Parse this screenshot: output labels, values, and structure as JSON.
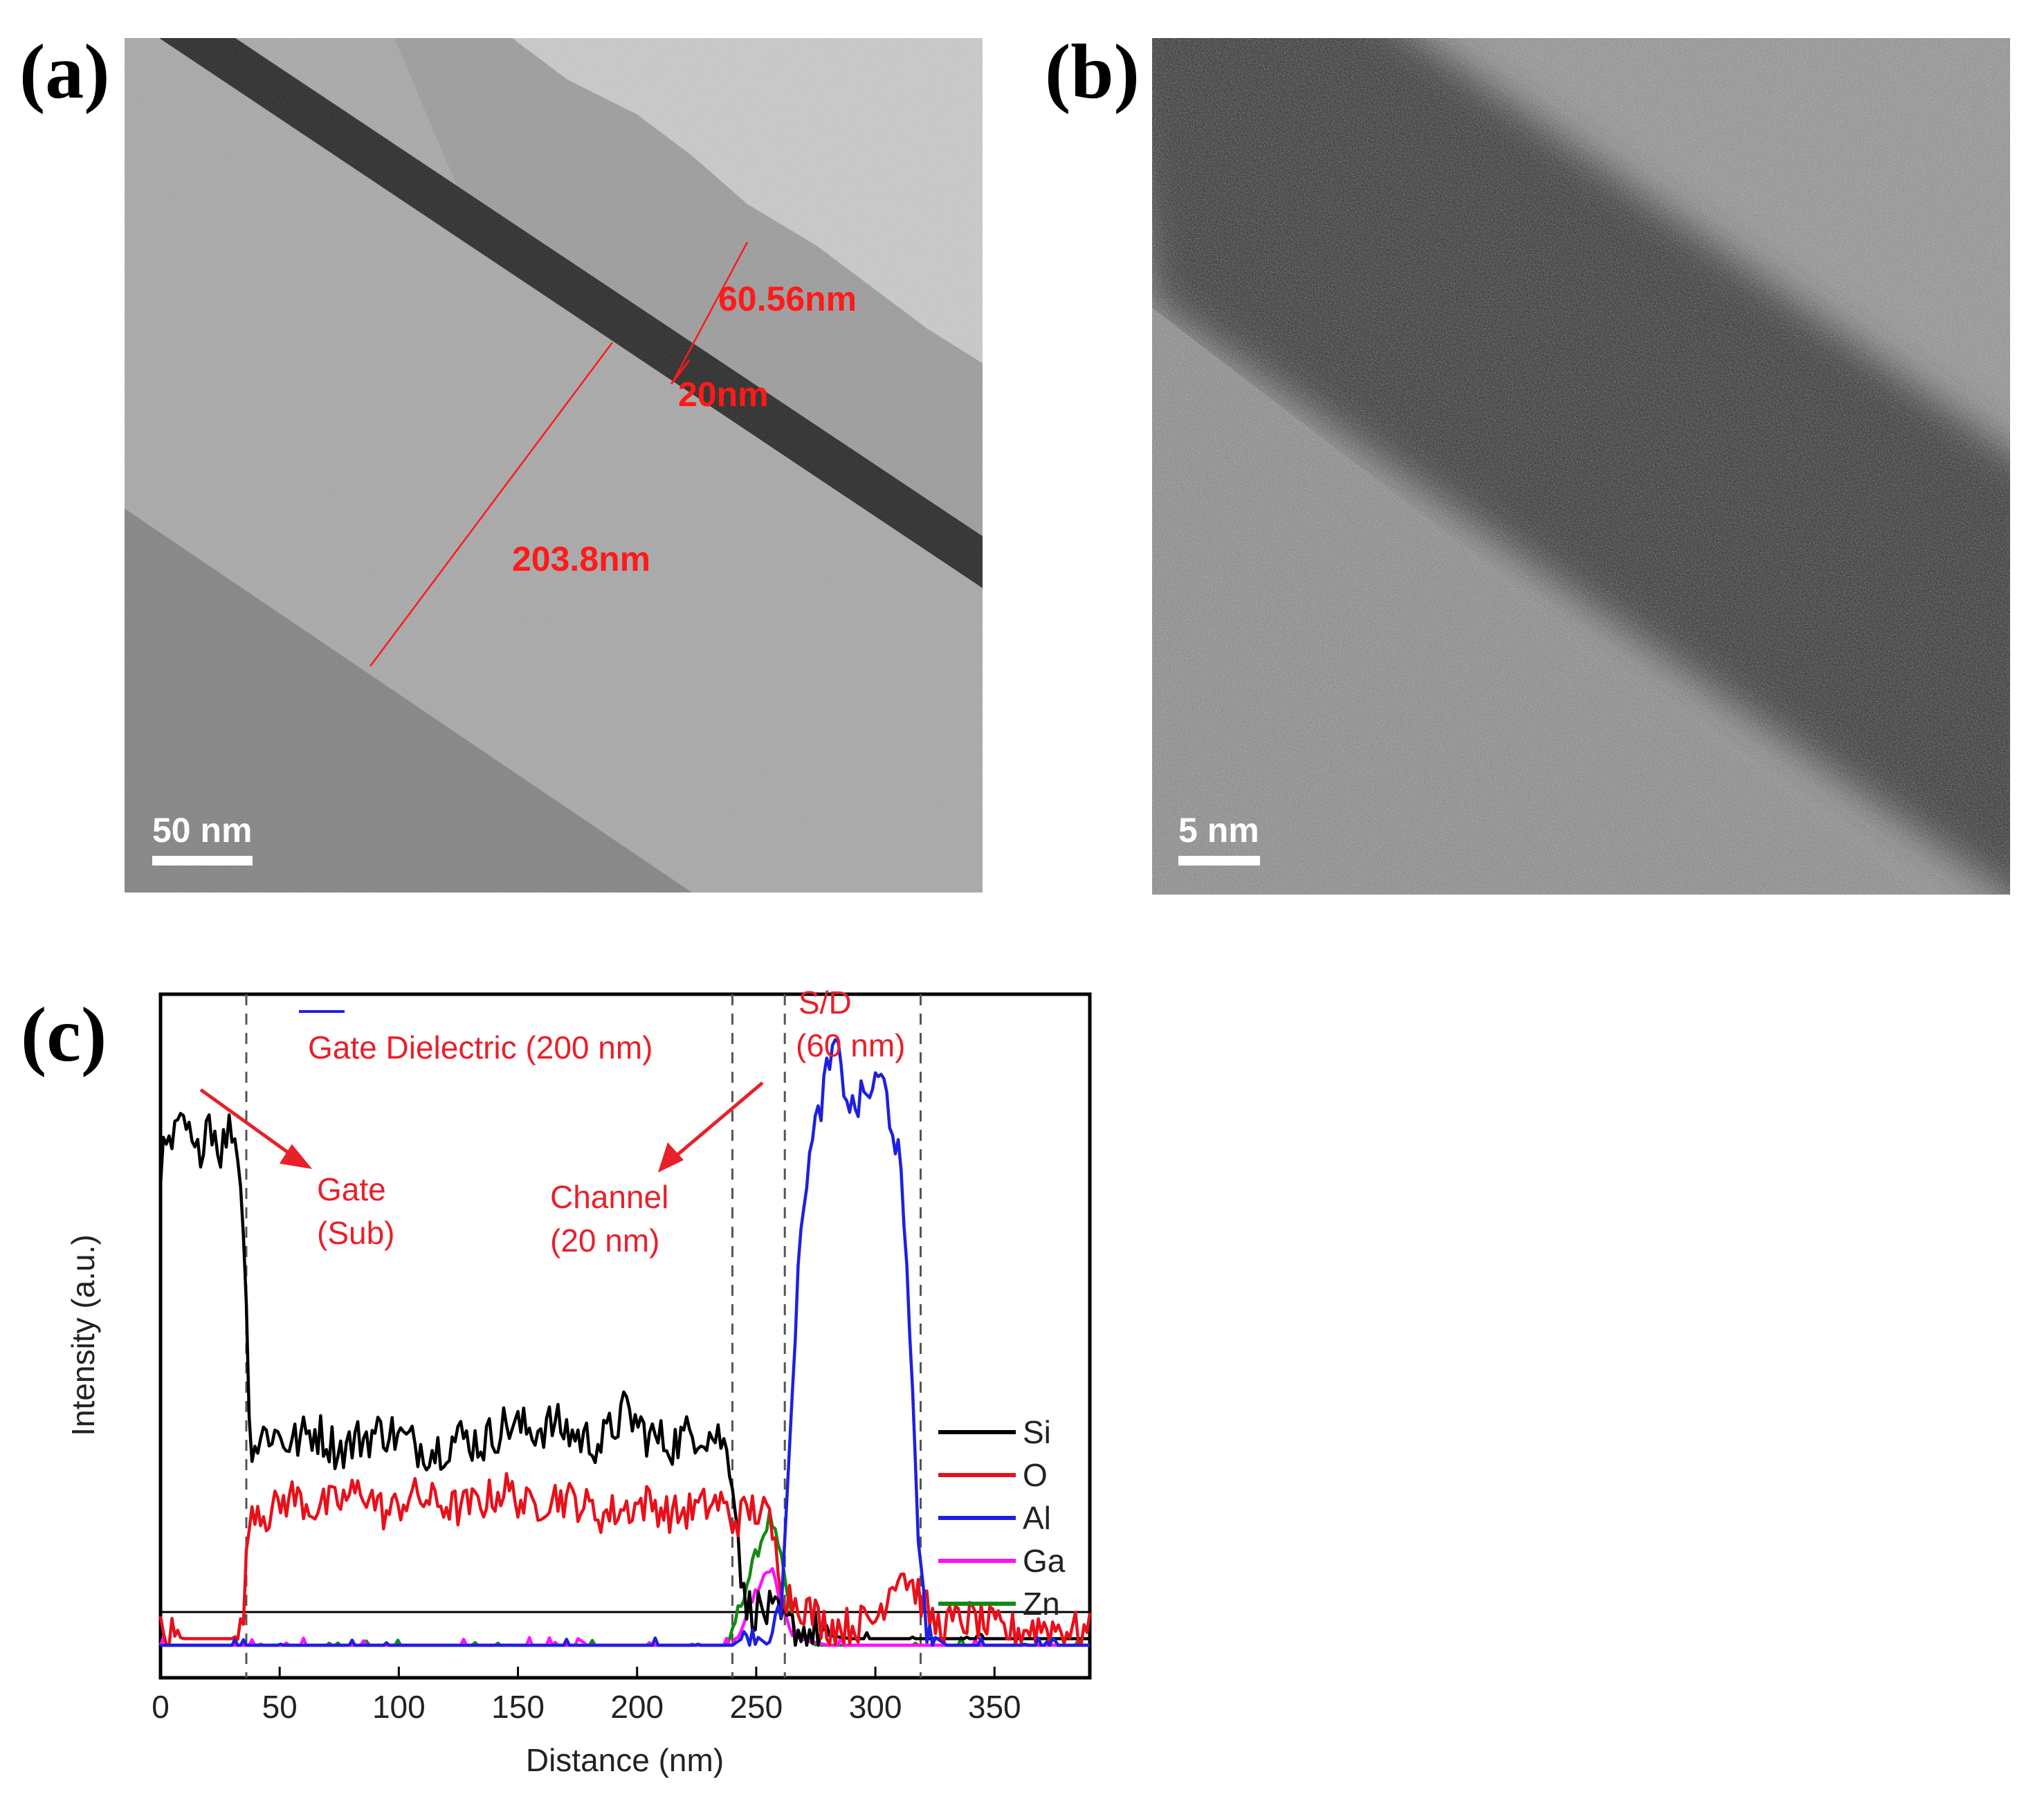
{
  "panels": {
    "a": {
      "label": "(a)",
      "measurements": [
        "60.56nm",
        "20nm",
        "203.8nm"
      ],
      "scale_bar": "50 nm"
    },
    "b": {
      "label": "(b)",
      "scale_bar": "5 nm"
    },
    "c": {
      "label": "(c)",
      "annotations": {
        "gate_dielectric": "Gate Dielectric (200 nm)",
        "sd_line1": "S/D",
        "sd_line2": "(60 nm)",
        "gate_line1": "Gate",
        "gate_line2": "(Sub)",
        "channel_line1": "Channel",
        "channel_line2": "(20 nm)"
      },
      "boundaries_nm": [
        36,
        240,
        262,
        319
      ]
    }
  },
  "colors": {
    "annotation": "#e8202a",
    "Si": "#000000",
    "O": "#e8101a",
    "Al": "#1f1fe0",
    "Ga": "#ff10ff",
    "Zn": "#128a12"
  },
  "chart_data": {
    "type": "line",
    "xlabel": "Distance (nm)",
    "ylabel": "Intensity (a.u.)",
    "xlim": [
      0,
      390
    ],
    "ylim": [
      -0.05,
      1.0
    ],
    "xticks": [
      0,
      50,
      100,
      150,
      200,
      250,
      300,
      350
    ],
    "legend": "right",
    "series": [
      {
        "name": "Si",
        "points": [
          [
            0,
            0.74
          ],
          [
            5,
            0.77
          ],
          [
            10,
            0.8
          ],
          [
            15,
            0.74
          ],
          [
            20,
            0.82
          ],
          [
            25,
            0.76
          ],
          [
            30,
            0.8
          ],
          [
            34,
            0.72
          ],
          [
            38,
            0.3
          ],
          [
            45,
            0.33
          ],
          [
            55,
            0.31
          ],
          [
            65,
            0.33
          ],
          [
            75,
            0.3
          ],
          [
            85,
            0.32
          ],
          [
            95,
            0.33
          ],
          [
            105,
            0.31
          ],
          [
            115,
            0.3
          ],
          [
            125,
            0.32
          ],
          [
            135,
            0.31
          ],
          [
            145,
            0.34
          ],
          [
            155,
            0.33
          ],
          [
            165,
            0.34
          ],
          [
            175,
            0.32
          ],
          [
            185,
            0.31
          ],
          [
            195,
            0.36
          ],
          [
            205,
            0.32
          ],
          [
            215,
            0.31
          ],
          [
            225,
            0.33
          ],
          [
            235,
            0.32
          ],
          [
            240,
            0.27
          ],
          [
            245,
            0.06
          ],
          [
            255,
            0.05
          ],
          [
            262,
            0.03
          ],
          [
            270,
            0.02
          ],
          [
            290,
            0.01
          ],
          [
            320,
            0.01
          ],
          [
            350,
            0.01
          ],
          [
            390,
            0.01
          ]
        ]
      },
      {
        "name": "O",
        "points": [
          [
            0,
            0.02
          ],
          [
            10,
            0.01
          ],
          [
            20,
            0.01
          ],
          [
            30,
            0.01
          ],
          [
            34,
            0.02
          ],
          [
            38,
            0.22
          ],
          [
            45,
            0.2
          ],
          [
            55,
            0.23
          ],
          [
            65,
            0.21
          ],
          [
            75,
            0.22
          ],
          [
            85,
            0.24
          ],
          [
            95,
            0.2
          ],
          [
            105,
            0.23
          ],
          [
            115,
            0.22
          ],
          [
            125,
            0.21
          ],
          [
            135,
            0.22
          ],
          [
            145,
            0.24
          ],
          [
            155,
            0.21
          ],
          [
            165,
            0.23
          ],
          [
            175,
            0.22
          ],
          [
            185,
            0.2
          ],
          [
            195,
            0.21
          ],
          [
            205,
            0.22
          ],
          [
            215,
            0.2
          ],
          [
            225,
            0.21
          ],
          [
            235,
            0.22
          ],
          [
            240,
            0.19
          ],
          [
            248,
            0.21
          ],
          [
            255,
            0.2
          ],
          [
            262,
            0.08
          ],
          [
            270,
            0.06
          ],
          [
            280,
            0.03
          ],
          [
            290,
            0.03
          ],
          [
            300,
            0.04
          ],
          [
            310,
            0.12
          ],
          [
            318,
            0.08
          ],
          [
            325,
            0.03
          ],
          [
            340,
            0.04
          ],
          [
            355,
            0.02
          ],
          [
            370,
            0.03
          ],
          [
            390,
            0.02
          ]
        ]
      },
      {
        "name": "Al",
        "points": [
          [
            0,
            0.0
          ],
          [
            240,
            0.0
          ],
          [
            248,
            0.02
          ],
          [
            255,
            0.0
          ],
          [
            260,
            0.04
          ],
          [
            265,
            0.4
          ],
          [
            270,
            0.7
          ],
          [
            278,
            0.85
          ],
          [
            283,
            0.92
          ],
          [
            290,
            0.82
          ],
          [
            297,
            0.85
          ],
          [
            303,
            0.87
          ],
          [
            310,
            0.75
          ],
          [
            315,
            0.45
          ],
          [
            319,
            0.1
          ],
          [
            322,
            0.02
          ],
          [
            330,
            0.0
          ],
          [
            390,
            0.0
          ]
        ]
      },
      {
        "name": "Ga",
        "points": [
          [
            0,
            0.0
          ],
          [
            240,
            0.0
          ],
          [
            246,
            0.05
          ],
          [
            252,
            0.1
          ],
          [
            257,
            0.12
          ],
          [
            262,
            0.04
          ],
          [
            268,
            0.01
          ],
          [
            280,
            0.0
          ],
          [
            390,
            0.0
          ]
        ]
      },
      {
        "name": "Zn",
        "points": [
          [
            0,
            0.0
          ],
          [
            238,
            0.0
          ],
          [
            244,
            0.07
          ],
          [
            250,
            0.14
          ],
          [
            256,
            0.2
          ],
          [
            261,
            0.12
          ],
          [
            266,
            0.02
          ],
          [
            275,
            0.0
          ],
          [
            390,
            0.0
          ]
        ]
      }
    ]
  }
}
